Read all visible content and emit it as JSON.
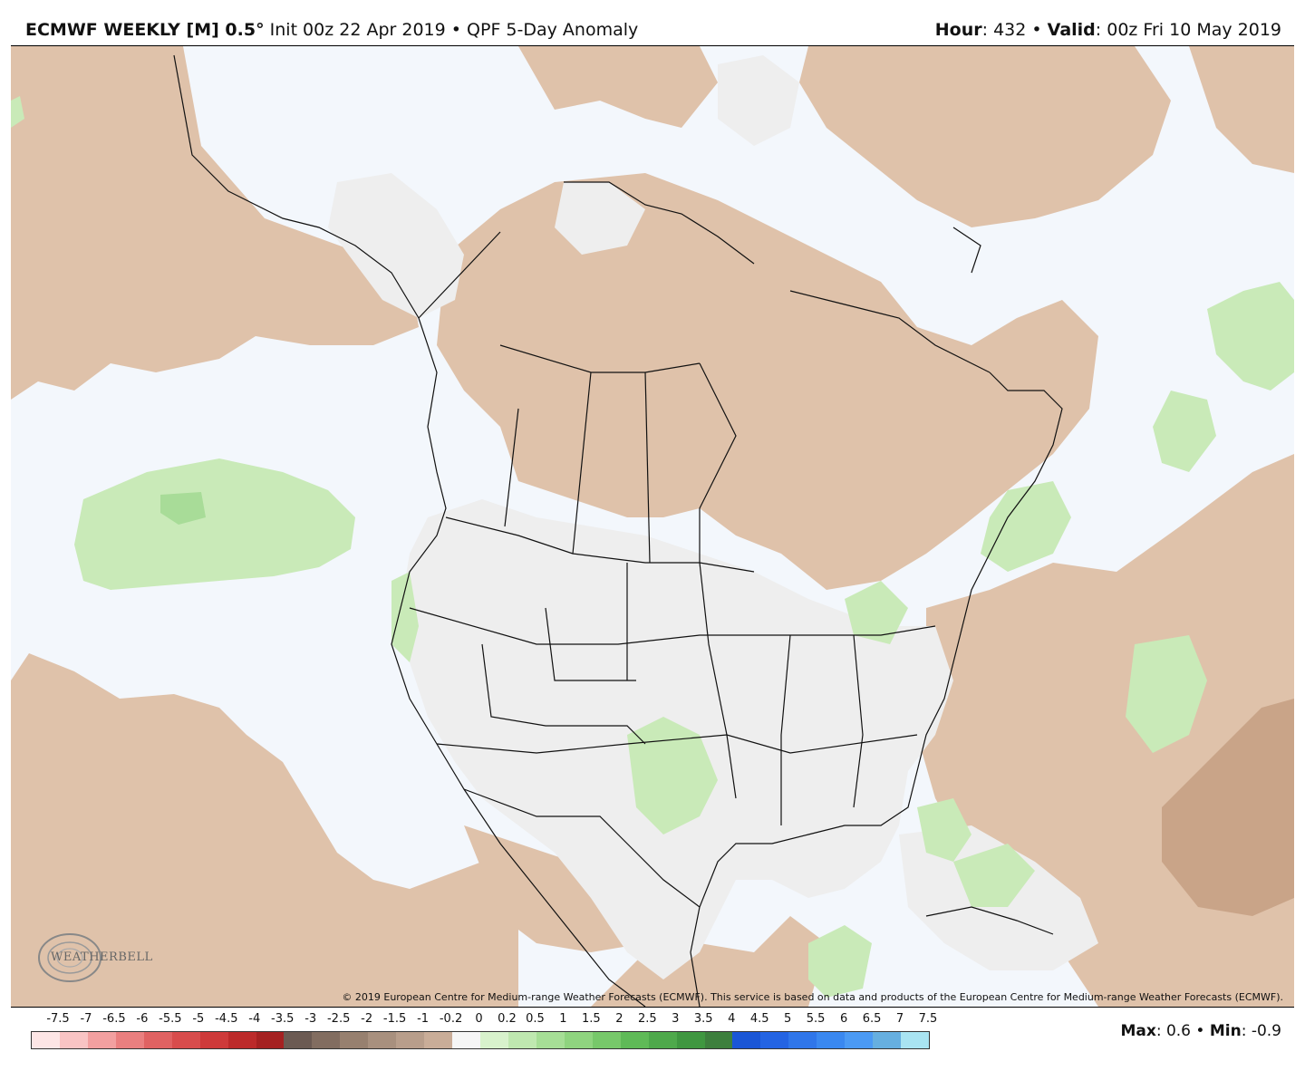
{
  "header": {
    "model": "ECMWF WEEKLY [M] 0.5",
    "degree": "°",
    "init": "Init 00z 22 Apr 2019",
    "bullet": "•",
    "product": "QPF 5-Day Anomaly",
    "hour_label": "Hour",
    "hour_value": ": 432",
    "valid_label": "Valid",
    "valid_value": ": 00z Fri 10 May 2019"
  },
  "map": {
    "copyright": "© 2019 European Centre for Medium-range Weather Forecasts (ECMWF). This service is based on data and products of the European Centre for Medium-range Weather Forecasts (ECMWF).",
    "logo_text": "WEATHERBELL",
    "colors": {
      "ocean": "#f3f7fc",
      "dry_anomaly": "#dfc2aa",
      "strong_dry": "#c9a488",
      "near_normal": "#eeeeee",
      "wet_anomaly": "#c9eab8",
      "wetter": "#a8dc98"
    }
  },
  "scale": {
    "ticks": [
      "-7.5",
      "-7",
      "-6.5",
      "-6",
      "-5.5",
      "-5",
      "-4.5",
      "-4",
      "-3.5",
      "-3",
      "-2.5",
      "-2",
      "-1.5",
      "-1",
      "-0.2",
      "0",
      "0.2",
      "0.5",
      "1",
      "1.5",
      "2",
      "2.5",
      "3",
      "3.5",
      "4",
      "4.5",
      "5",
      "5.5",
      "6",
      "6.5",
      "7",
      "7.5"
    ],
    "colors": [
      "#fde5e5",
      "#f9c4c4",
      "#f2a0a0",
      "#ea7f7f",
      "#e06262",
      "#d84c4c",
      "#ce3a3a",
      "#bc2a2a",
      "#a52121",
      "#6b5a52",
      "#826d60",
      "#97806f",
      "#a8907e",
      "#b89e8b",
      "#c9ad98",
      "#f6f6f6",
      "#d8f2cc",
      "#bfe8b0",
      "#a6de96",
      "#8fd47f",
      "#77c86a",
      "#5fba57",
      "#4ea94b",
      "#3f9740",
      "#3d7f3d",
      "#1a56d6",
      "#2464e3",
      "#2f76ea",
      "#3a88f0",
      "#4b9af4",
      "#66afe0",
      "#a9e4f2"
    ]
  },
  "stats": {
    "max_label": "Max",
    "max_value": ": 0.6",
    "min_label": "Min",
    "min_value": ": -0.9"
  }
}
